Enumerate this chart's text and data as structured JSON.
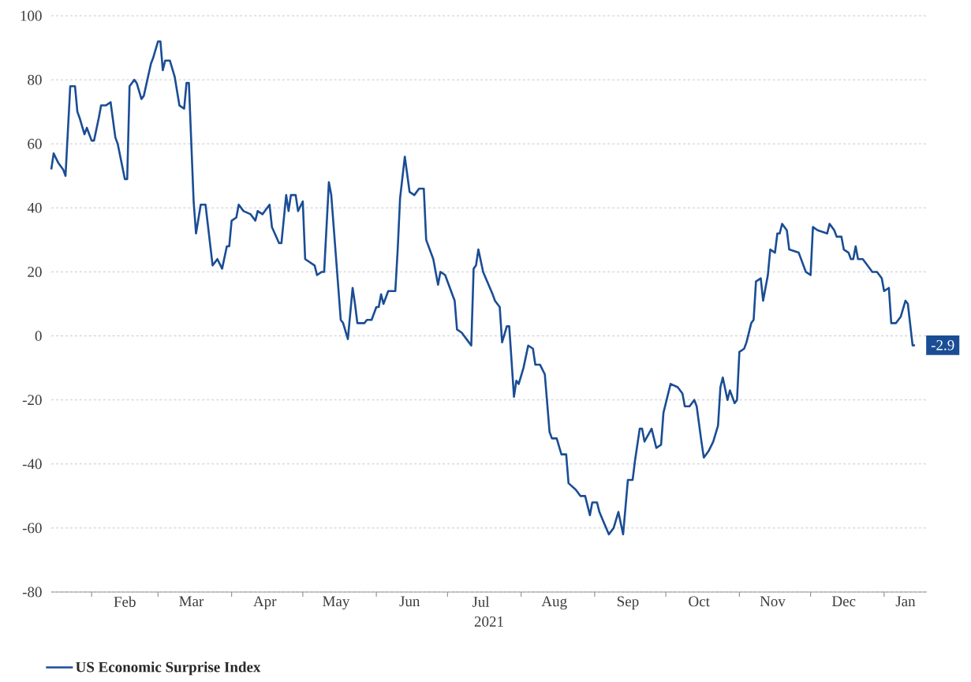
{
  "chart_data": {
    "type": "line",
    "xlabel": "2021",
    "x": [
      "2021-01-15",
      "2021-01-16",
      "2021-01-18",
      "2021-01-20",
      "2021-01-21",
      "2021-01-23",
      "2021-01-25",
      "2021-01-26",
      "2021-01-27",
      "2021-01-29",
      "2021-01-30",
      "2021-02-01",
      "2021-02-02",
      "2021-02-04",
      "2021-02-05",
      "2021-02-07",
      "2021-02-09",
      "2021-02-11",
      "2021-02-12",
      "2021-02-15",
      "2021-02-16",
      "2021-02-17",
      "2021-02-19",
      "2021-02-20",
      "2021-02-22",
      "2021-02-23",
      "2021-02-26",
      "2021-02-27",
      "2021-03-01",
      "2021-03-02",
      "2021-03-03",
      "2021-03-04",
      "2021-03-06",
      "2021-03-08",
      "2021-03-10",
      "2021-03-12",
      "2021-03-13",
      "2021-03-14",
      "2021-03-16",
      "2021-03-17",
      "2021-03-19",
      "2021-03-21",
      "2021-03-24",
      "2021-03-26",
      "2021-03-28",
      "2021-03-30",
      "2021-03-31",
      "2021-04-01",
      "2021-04-03",
      "2021-04-04",
      "2021-04-06",
      "2021-04-09",
      "2021-04-11",
      "2021-04-12",
      "2021-04-14",
      "2021-04-17",
      "2021-04-18",
      "2021-04-21",
      "2021-04-22",
      "2021-04-24",
      "2021-04-25",
      "2021-04-26",
      "2021-04-28",
      "2021-04-29",
      "2021-05-01",
      "2021-05-02",
      "2021-05-06",
      "2021-05-07",
      "2021-05-09",
      "2021-05-10",
      "2021-05-12",
      "2021-05-13",
      "2021-05-17",
      "2021-05-18",
      "2021-05-20",
      "2021-05-22",
      "2021-05-23",
      "2021-05-24",
      "2021-05-27",
      "2021-05-28",
      "2021-05-30",
      "2021-06-01",
      "2021-06-02",
      "2021-06-03",
      "2021-06-04",
      "2021-06-06",
      "2021-06-09",
      "2021-06-10",
      "2021-06-11",
      "2021-06-13",
      "2021-06-15",
      "2021-06-17",
      "2021-06-19",
      "2021-06-21",
      "2021-06-22",
      "2021-06-25",
      "2021-06-27",
      "2021-06-28",
      "2021-06-30",
      "2021-07-02",
      "2021-07-04",
      "2021-07-05",
      "2021-07-07",
      "2021-07-09",
      "2021-07-11",
      "2021-07-12",
      "2021-07-13",
      "2021-07-14",
      "2021-07-16",
      "2021-07-20",
      "2021-07-21",
      "2021-07-23",
      "2021-07-24",
      "2021-07-26",
      "2021-07-27",
      "2021-07-29",
      "2021-07-30",
      "2021-07-31",
      "2021-08-02",
      "2021-08-04",
      "2021-08-06",
      "2021-08-07",
      "2021-08-09",
      "2021-08-11",
      "2021-08-13",
      "2021-08-14",
      "2021-08-16",
      "2021-08-18",
      "2021-08-20",
      "2021-08-21",
      "2021-08-24",
      "2021-08-26",
      "2021-08-28",
      "2021-08-30",
      "2021-08-31",
      "2021-09-02",
      "2021-09-03",
      "2021-09-07",
      "2021-09-09",
      "2021-09-11",
      "2021-09-13",
      "2021-09-15",
      "2021-09-17",
      "2021-09-18",
      "2021-09-20",
      "2021-09-21",
      "2021-09-22",
      "2021-09-25",
      "2021-09-27",
      "2021-09-29",
      "2021-09-30",
      "2021-10-03",
      "2021-10-06",
      "2021-10-08",
      "2021-10-09",
      "2021-10-11",
      "2021-10-13",
      "2021-10-14",
      "2021-10-16",
      "2021-10-17",
      "2021-10-19",
      "2021-10-21",
      "2021-10-23",
      "2021-10-24",
      "2021-10-25",
      "2021-10-27",
      "2021-10-28",
      "2021-10-30",
      "2021-10-31",
      "2021-11-01",
      "2021-11-03",
      "2021-11-04",
      "2021-11-06",
      "2021-11-07",
      "2021-11-08",
      "2021-11-10",
      "2021-11-11",
      "2021-11-13",
      "2021-11-14",
      "2021-11-16",
      "2021-11-17",
      "2021-11-18",
      "2021-11-19",
      "2021-11-21",
      "2021-11-22",
      "2021-11-26",
      "2021-11-29",
      "2021-12-01",
      "2021-12-02",
      "2021-12-04",
      "2021-12-08",
      "2021-12-09",
      "2021-12-11",
      "2021-12-12",
      "2021-12-14",
      "2021-12-15",
      "2021-12-17",
      "2021-12-18",
      "2021-12-19",
      "2021-12-20",
      "2021-12-21",
      "2021-12-23",
      "2021-12-25",
      "2021-12-27",
      "2021-12-29",
      "2021-12-31",
      "2022-01-01",
      "2022-01-03",
      "2022-01-04",
      "2022-01-06",
      "2022-01-08",
      "2022-01-10",
      "2022-01-11",
      "2022-01-13",
      "2022-01-14"
    ],
    "series": [
      {
        "name": "US Economic Surprise Index",
        "color": "#1a4d94",
        "values": [
          52,
          57,
          54,
          52,
          50,
          78,
          78,
          70,
          68,
          63,
          65,
          61,
          61,
          68,
          72,
          72,
          73,
          62,
          60,
          49,
          49,
          78,
          80,
          79,
          74,
          75,
          85,
          87,
          92,
          92,
          83,
          86,
          86,
          81,
          72,
          71,
          79,
          79,
          42,
          32,
          41,
          41,
          22,
          24,
          21,
          28,
          28,
          36,
          37,
          41,
          39,
          38,
          36,
          39,
          38,
          41,
          34,
          29,
          29,
          44,
          39,
          44,
          44,
          39,
          42,
          24,
          22,
          19,
          20,
          20,
          48,
          44,
          5,
          4,
          -1,
          15,
          10,
          4,
          4,
          5,
          5,
          9,
          9,
          13,
          10,
          14,
          14,
          27,
          43,
          56,
          45,
          44,
          46,
          46,
          30,
          24,
          16,
          20,
          19,
          15,
          11,
          2,
          1,
          -1,
          -3,
          21,
          22,
          27,
          20,
          13,
          11,
          9,
          -2,
          3,
          3,
          -19,
          -14,
          -15,
          -10,
          -3,
          -4,
          -9,
          -9,
          -12,
          -30,
          -32,
          -32,
          -37,
          -37,
          -46,
          -48,
          -50,
          -50,
          -56,
          -52,
          -52,
          -55,
          -62,
          -60,
          -55,
          -62,
          -45,
          -45,
          -39,
          -29,
          -29,
          -33,
          -29,
          -35,
          -34,
          -24,
          -15,
          -16,
          -18,
          -22,
          -22,
          -20,
          -22,
          -33,
          -38,
          -36,
          -33,
          -28,
          -16,
          -13,
          -20,
          -17,
          -21,
          -20,
          -5,
          -4,
          -2,
          4,
          5,
          17,
          18,
          11,
          19,
          27,
          26,
          32,
          32,
          35,
          33,
          27,
          26,
          20,
          19,
          34,
          33,
          32,
          35,
          33,
          31,
          31,
          27,
          26,
          24,
          24,
          28,
          24,
          24,
          22,
          20,
          20,
          18,
          14,
          15,
          4,
          4,
          6,
          11,
          10,
          -3,
          -2.9
        ]
      }
    ],
    "xlim": [
      "2021-01-15",
      "2022-01-19"
    ],
    "xticks": [
      {
        "value": "2021-02-01",
        "label": null
      },
      {
        "value": "2021-03-01",
        "label": null
      },
      {
        "value": "2021-04-01",
        "label": null
      },
      {
        "value": "2021-05-01",
        "label": null
      },
      {
        "value": "2021-06-01",
        "label": null
      },
      {
        "value": "2021-07-01",
        "label": null
      },
      {
        "value": "2021-08-01",
        "label": null
      },
      {
        "value": "2021-09-01",
        "label": null
      },
      {
        "value": "2021-10-01",
        "label": null
      },
      {
        "value": "2021-11-01",
        "label": null
      },
      {
        "value": "2021-12-01",
        "label": null
      },
      {
        "value": "2022-01-01",
        "label": null
      },
      {
        "value": "2021-02-15",
        "label": "Feb"
      },
      {
        "value": "2021-03-15",
        "label": "Mar"
      },
      {
        "value": "2021-04-15",
        "label": "Apr"
      },
      {
        "value": "2021-05-15",
        "label": "May"
      },
      {
        "value": "2021-06-15",
        "label": "Jun"
      },
      {
        "value": "2021-07-15",
        "label": "Jul"
      },
      {
        "value": "2021-08-15",
        "label": "Aug"
      },
      {
        "value": "2021-09-15",
        "label": "Sep"
      },
      {
        "value": "2021-10-15",
        "label": "Oct"
      },
      {
        "value": "2021-11-15",
        "label": "Nov"
      },
      {
        "value": "2021-12-15",
        "label": "Dec"
      },
      {
        "value": "2022-01-10",
        "label": "Jan"
      }
    ],
    "ylim": [
      -80,
      100
    ],
    "yticks": [
      -80,
      -60,
      -40,
      -20,
      0,
      20,
      40,
      60,
      80,
      100
    ],
    "grid": "y",
    "legend": "bottom",
    "marker": "none",
    "line_style": "solid",
    "annotations": [
      {
        "text": "-2.9",
        "x": "2022-01-14",
        "y": -2.9
      }
    ]
  }
}
